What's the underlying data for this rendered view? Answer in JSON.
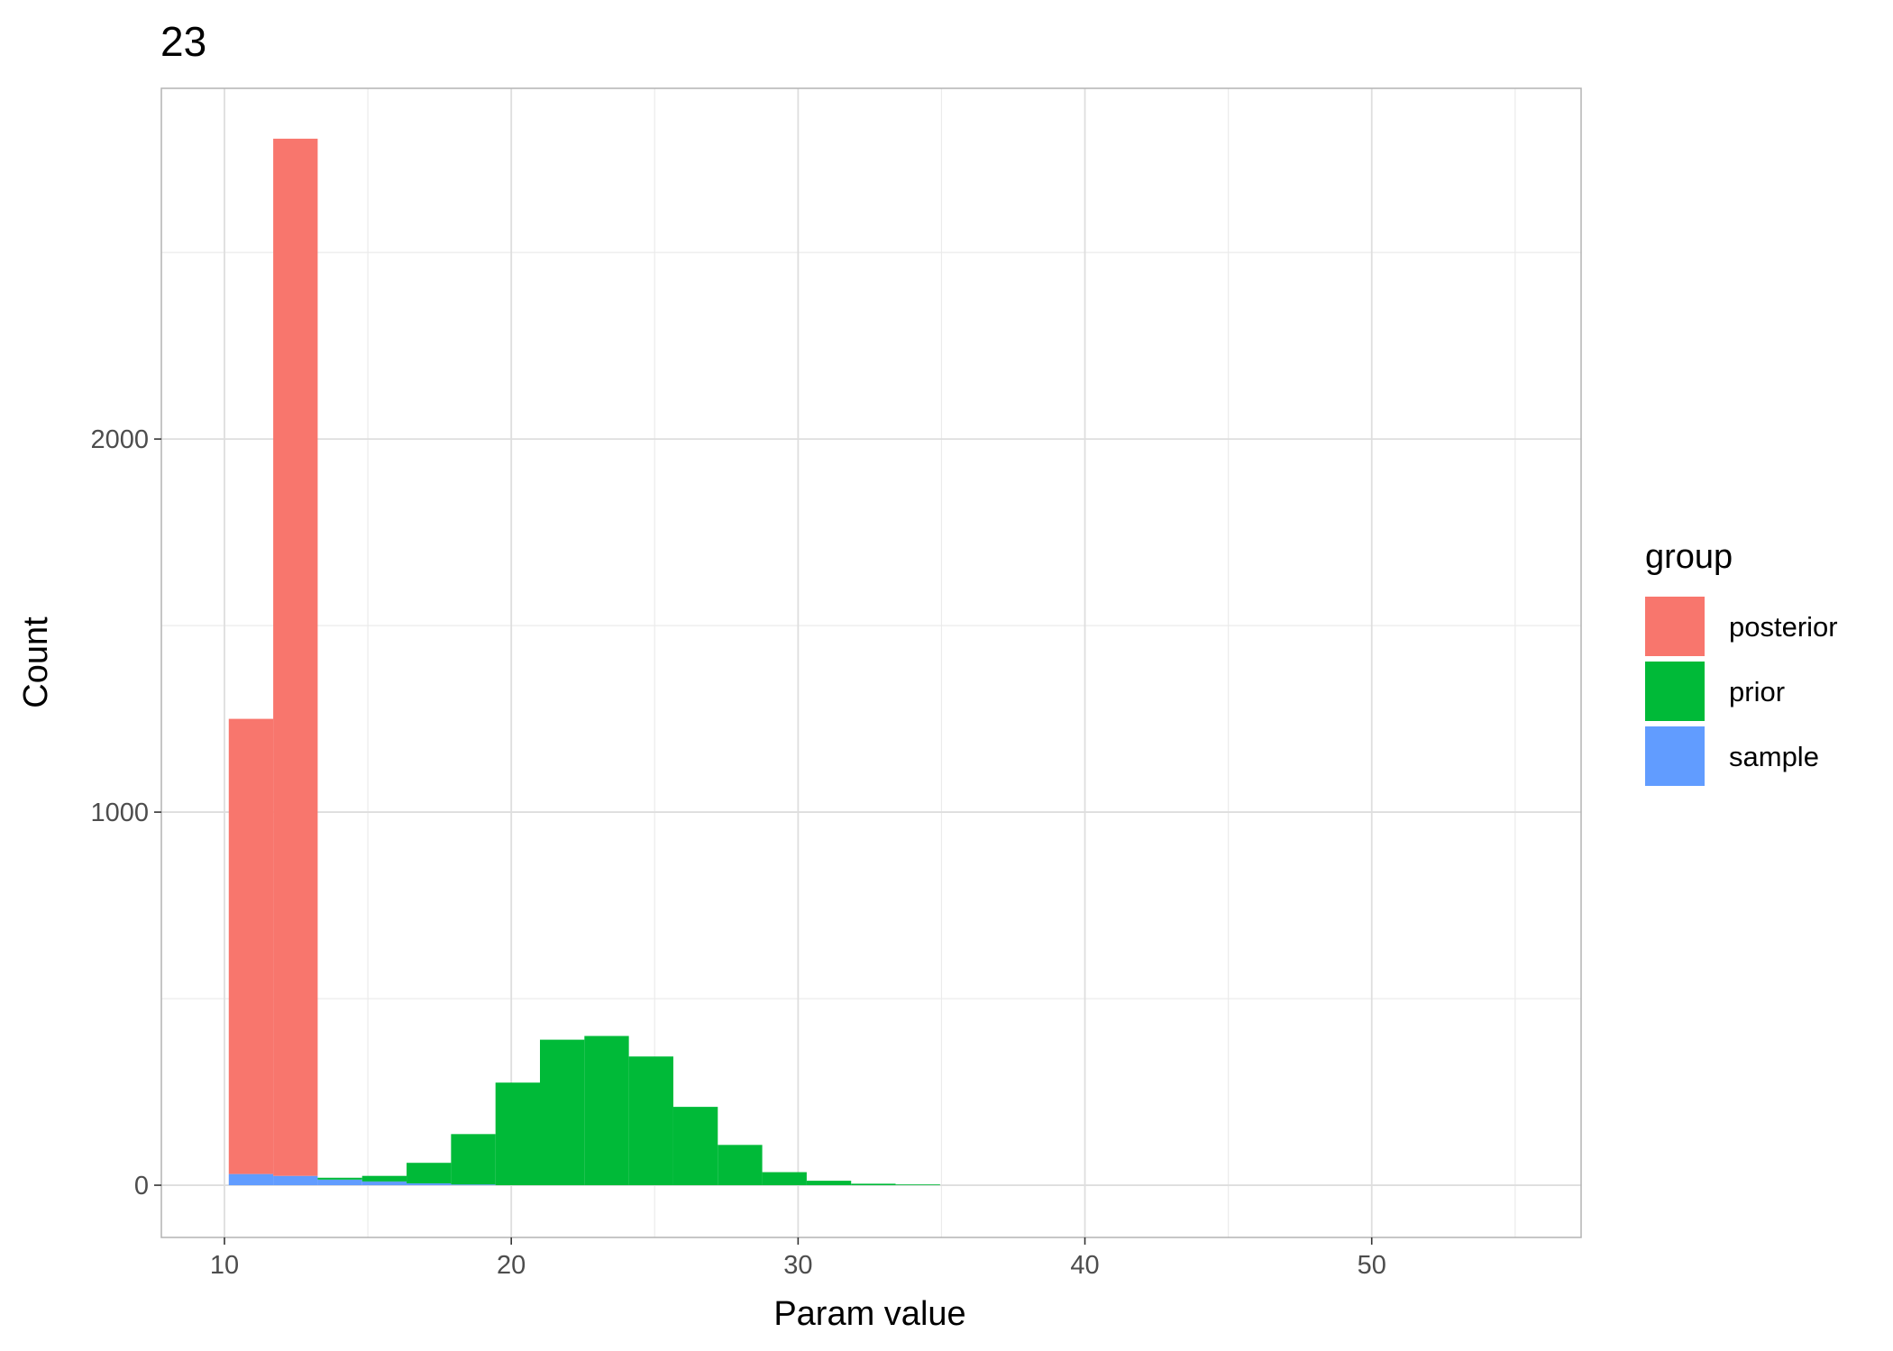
{
  "chart_data": {
    "type": "bar",
    "subtype": "stacked-histogram",
    "title": "23",
    "xlabel": "Param value",
    "ylabel": "Count",
    "xlim": [
      7.8,
      57.3
    ],
    "ylim": [
      -140,
      2940
    ],
    "x_ticks": [
      10,
      20,
      30,
      40,
      50
    ],
    "y_ticks": [
      0,
      1000,
      2000
    ],
    "grid": true,
    "legend": {
      "title": "group",
      "position": "right",
      "entries": [
        {
          "name": "posterior",
          "color": "#F8766D"
        },
        {
          "name": "prior",
          "color": "#00BA38"
        },
        {
          "name": "sample",
          "color": "#619CFF"
        }
      ]
    },
    "bin_width": 1.55,
    "bins": [
      {
        "x0": 10.15,
        "sample": 30,
        "prior": 0,
        "posterior": 1220
      },
      {
        "x0": 11.7,
        "sample": 25,
        "prior": 0,
        "posterior": 2780
      },
      {
        "x0": 13.25,
        "sample": 15,
        "prior": 5,
        "posterior": 0
      },
      {
        "x0": 14.8,
        "sample": 10,
        "prior": 15,
        "posterior": 0
      },
      {
        "x0": 16.35,
        "sample": 5,
        "prior": 55,
        "posterior": 0
      },
      {
        "x0": 17.9,
        "sample": 2,
        "prior": 135,
        "posterior": 0
      },
      {
        "x0": 19.45,
        "sample": 0,
        "prior": 275,
        "posterior": 0
      },
      {
        "x0": 21.0,
        "sample": 0,
        "prior": 390,
        "posterior": 0
      },
      {
        "x0": 22.55,
        "sample": 0,
        "prior": 400,
        "posterior": 0
      },
      {
        "x0": 24.1,
        "sample": 0,
        "prior": 345,
        "posterior": 0
      },
      {
        "x0": 25.65,
        "sample": 0,
        "prior": 210,
        "posterior": 0
      },
      {
        "x0": 27.2,
        "sample": 0,
        "prior": 108,
        "posterior": 0
      },
      {
        "x0": 28.75,
        "sample": 0,
        "prior": 35,
        "posterior": 0
      },
      {
        "x0": 30.3,
        "sample": 0,
        "prior": 12,
        "posterior": 0
      },
      {
        "x0": 31.85,
        "sample": 0,
        "prior": 4,
        "posterior": 0
      },
      {
        "x0": 33.4,
        "sample": 0,
        "prior": 2,
        "posterior": 0
      }
    ]
  }
}
